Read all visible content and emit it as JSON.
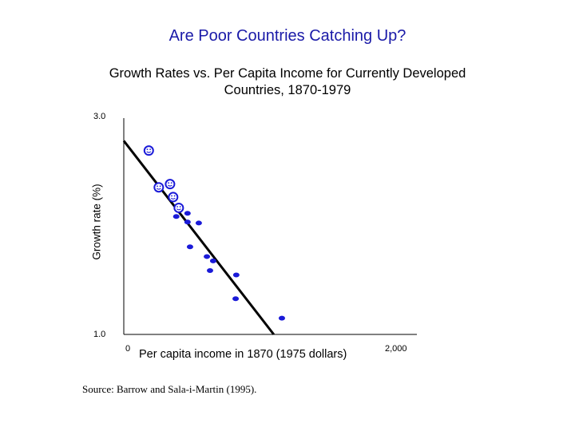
{
  "slide": {
    "title": "Are Poor Countries Catching Up?"
  },
  "chart_data": {
    "type": "scatter",
    "title_lines": [
      "Growth Rates vs. Per Capita Income for Currently Developed",
      "Countries, 1870-1979"
    ],
    "xlabel": "Per capita income in 1870 (1975 dollars)",
    "ylabel": "Growth rate (%)",
    "xlim": [
      0,
      2000
    ],
    "ylim": [
      1.0,
      3.0
    ],
    "y_tick_labels": [
      "3.0",
      "1.0"
    ],
    "x_tick_labels": [
      "0",
      "2,000"
    ],
    "points": [
      {
        "x": 200,
        "y": 2.7,
        "style": "smiley"
      },
      {
        "x": 280,
        "y": 2.36,
        "style": "smiley"
      },
      {
        "x": 370,
        "y": 2.39,
        "style": "smiley"
      },
      {
        "x": 395,
        "y": 2.27,
        "style": "smiley"
      },
      {
        "x": 440,
        "y": 2.17,
        "style": "smiley"
      },
      {
        "x": 420,
        "y": 2.09,
        "style": "dot"
      },
      {
        "x": 510,
        "y": 2.12,
        "style": "dot"
      },
      {
        "x": 510,
        "y": 2.04,
        "style": "dot"
      },
      {
        "x": 600,
        "y": 2.03,
        "style": "dot"
      },
      {
        "x": 530,
        "y": 1.81,
        "style": "dot"
      },
      {
        "x": 665,
        "y": 1.72,
        "style": "dot"
      },
      {
        "x": 715,
        "y": 1.68,
        "style": "dot"
      },
      {
        "x": 690,
        "y": 1.59,
        "style": "dot"
      },
      {
        "x": 900,
        "y": 1.55,
        "style": "dot"
      },
      {
        "x": 895,
        "y": 1.33,
        "style": "dot"
      },
      {
        "x": 1265,
        "y": 1.15,
        "style": "dot"
      }
    ],
    "trend_line": {
      "x": [
        0,
        1200
      ],
      "y": [
        2.79,
        1.0
      ]
    },
    "source": "Source:  Barrow and Sala-i-Martin (1995).",
    "colors": {
      "title": "#1a1aa8",
      "points": "#1a1ad8",
      "axes": "#000000"
    }
  }
}
